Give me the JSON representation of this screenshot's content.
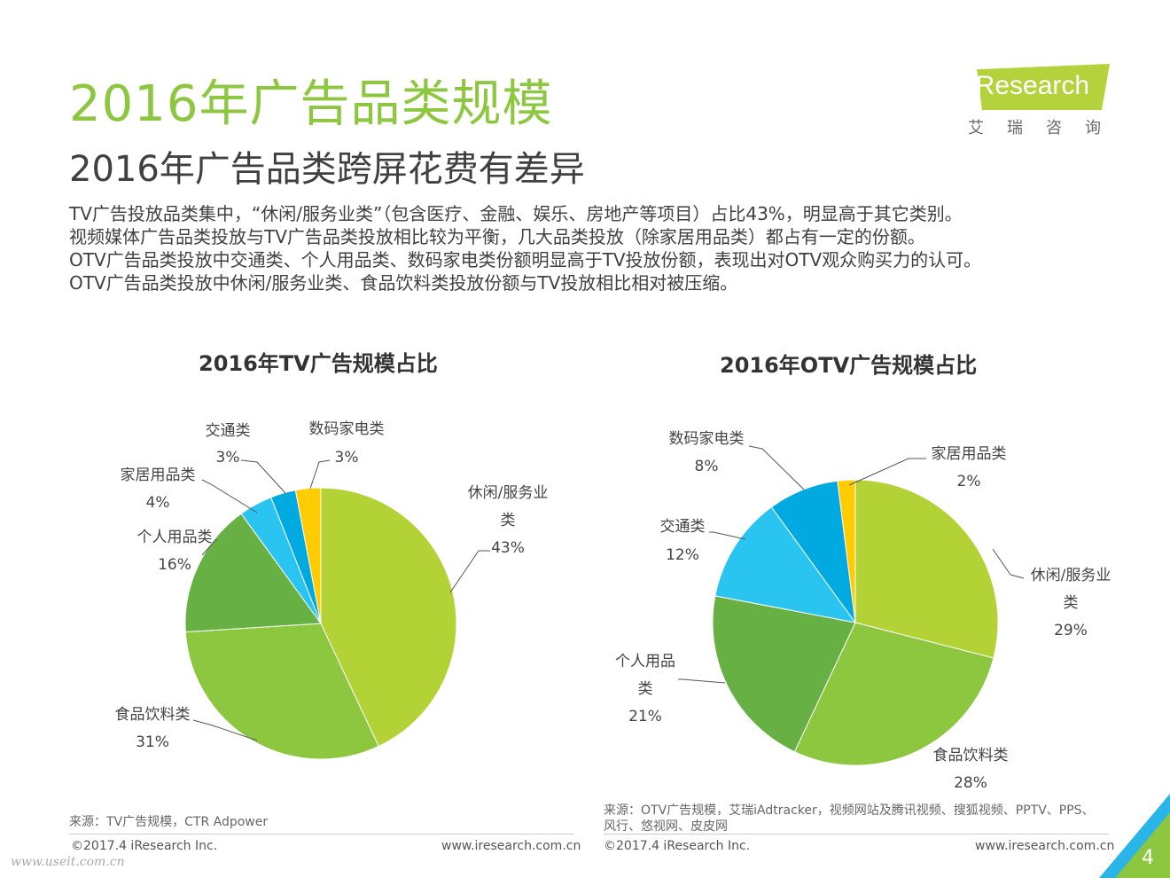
{
  "header": {
    "title": "2016年广告品类规模",
    "subtitle": "2016年广告品类跨屏花费有差异"
  },
  "logo": {
    "text": "iResearch",
    "cn": "艾瑞咨询"
  },
  "description": [
    "TV广告投放品类集中，“休闲/服务业类”（包含医疗、金融、娱乐、房地产等项目）占比43%，明显高于其它类别。",
    "视频媒体广告品类投放与TV广告品类投放相比较为平衡，几大品类投放（除家居用品类）都占有一定的份额。",
    "OTV广告品类投放中交通类、个人用品类、数码家电类份额明显高于TV投放份额，表现出对OTV观众购买力的认可。",
    "OTV广告品类投放中休闲/服务业类、食品饮料类投放份额与TV投放相比相对被压缩。"
  ],
  "colors": {
    "title_green": "#8dc63f",
    "lime": "#b2d235",
    "green": "#8dc63f",
    "dark_green": "#66b044",
    "light_blue": "#29c5f0",
    "blue": "#00a9e0",
    "yellow": "#ffcc00"
  },
  "chart_data": [
    {
      "type": "pie",
      "title": "2016年TV广告规模占比",
      "slices": [
        {
          "label": "休闲/服务业类",
          "value": 43,
          "pct_label": "43%",
          "color": "#b2d235"
        },
        {
          "label": "食品饮料类",
          "value": 31,
          "pct_label": "31%",
          "color": "#8dc63f"
        },
        {
          "label": "个人用品类",
          "value": 16,
          "pct_label": "16%",
          "color": "#66b044"
        },
        {
          "label": "家居用品类",
          "value": 4,
          "pct_label": "4%",
          "color": "#29c5f0"
        },
        {
          "label": "交通类",
          "value": 3,
          "pct_label": "3%",
          "color": "#00a9e0"
        },
        {
          "label": "数码家电类",
          "value": 3,
          "pct_label": "3%",
          "color": "#ffcc00"
        }
      ]
    },
    {
      "type": "pie",
      "title": "2016年OTV广告规模占比",
      "slices": [
        {
          "label": "休闲/服务业类",
          "value": 29,
          "pct_label": "29%",
          "color": "#b2d235"
        },
        {
          "label": "食品饮料类",
          "value": 28,
          "pct_label": "28%",
          "color": "#8dc63f"
        },
        {
          "label": "个人用品类",
          "value": 21,
          "pct_label": "21%",
          "color": "#66b044"
        },
        {
          "label": "交通类",
          "value": 12,
          "pct_label": "12%",
          "color": "#29c5f0"
        },
        {
          "label": "数码家电类",
          "value": 8,
          "pct_label": "8%",
          "color": "#00a9e0"
        },
        {
          "label": "家居用品类",
          "value": 2,
          "pct_label": "2%",
          "color": "#ffcc00"
        }
      ]
    }
  ],
  "footer": {
    "tv_source": "来源：TV广告规模，CTR  Adpower",
    "otv_source": "来源：OTV广告规模，艾瑞iAdtracker，视频网站及腾讯视频、搜狐视频、PPTV、PPS、风行、悠视网、皮皮网",
    "copyright": "©2017.4 iResearch Inc.",
    "url": "www.iresearch.com.cn",
    "watermark": "www.useit.com.cn",
    "page_number": "4"
  }
}
